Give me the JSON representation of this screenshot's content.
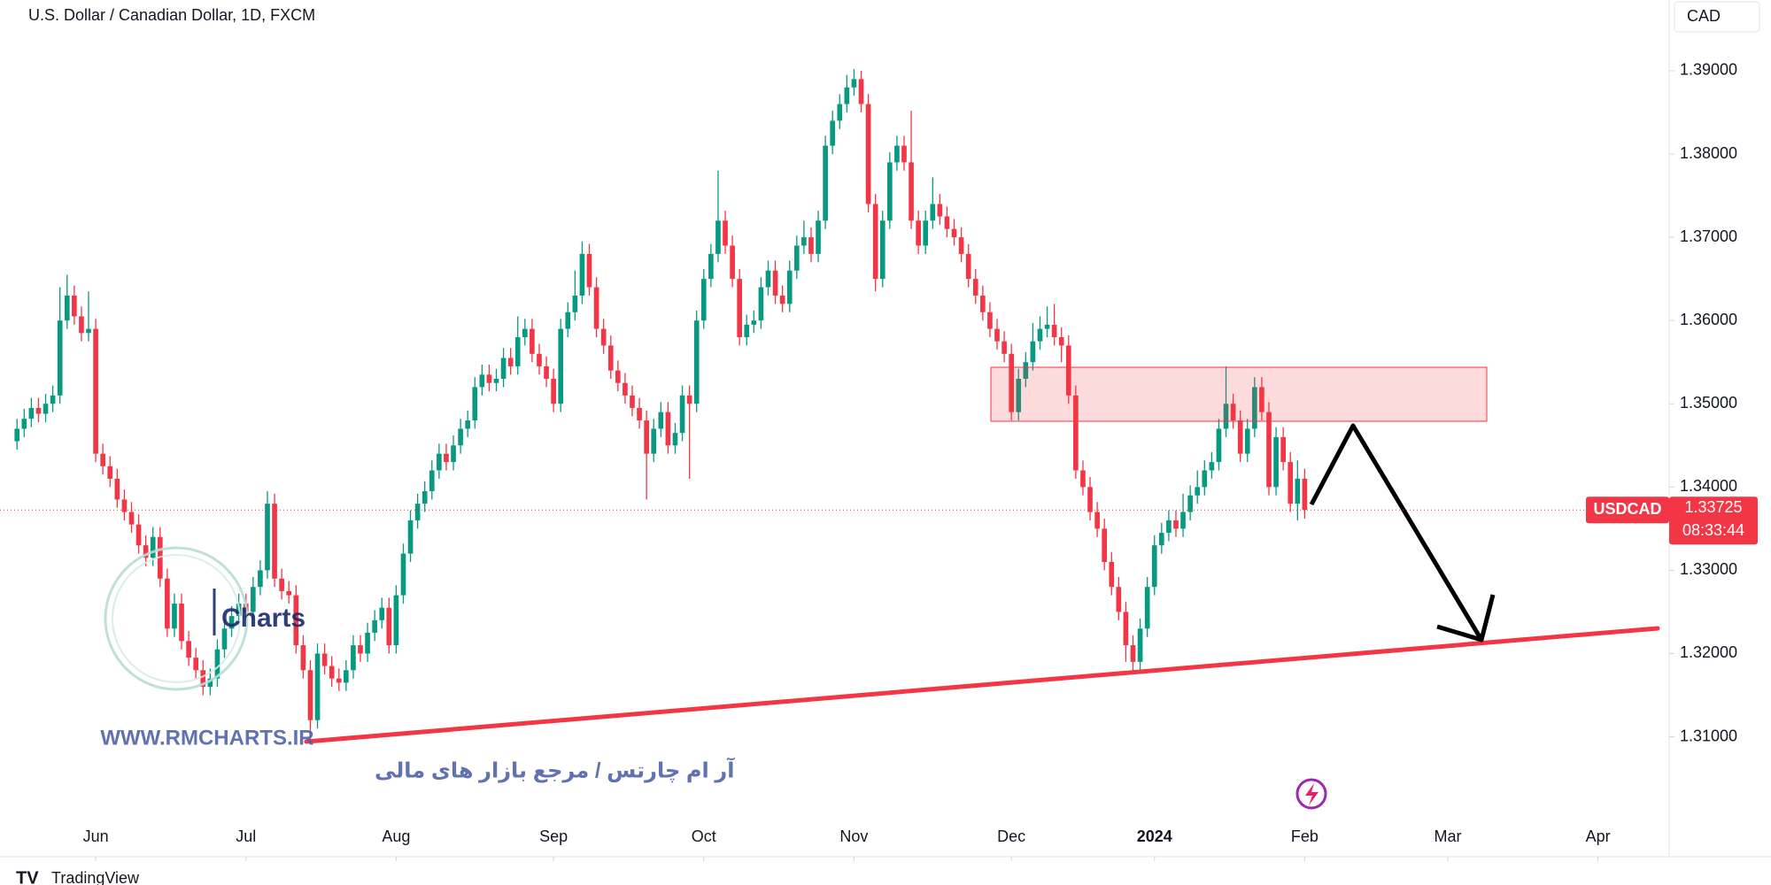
{
  "chart_data": {
    "type": "candlestick",
    "title": "U.S. Dollar / Canadian Dollar, 1D, FXCM",
    "currency": "CAD",
    "symbol": "USDCAD",
    "last_price": 1.33725,
    "countdown": "08:33:44",
    "up_color": "#089981",
    "down_color": "#f23645",
    "xlim": [
      -2.38,
      230.95
    ],
    "xticks": [
      {
        "value": 11,
        "label": "Jun"
      },
      {
        "value": 32,
        "label": "Jul"
      },
      {
        "value": 53,
        "label": "Aug"
      },
      {
        "value": 75,
        "label": "Sep"
      },
      {
        "value": 96,
        "label": "Oct"
      },
      {
        "value": 117,
        "label": "Nov"
      },
      {
        "value": 139,
        "label": "Dec"
      },
      {
        "value": 159,
        "label": "2024"
      },
      {
        "value": 180,
        "label": "Feb"
      },
      {
        "value": 200,
        "label": "Mar"
      },
      {
        "value": 221,
        "label": "Apr"
      }
    ],
    "ylim": [
      1.2956,
      1.3985
    ],
    "yticks": [
      {
        "value": 1.31,
        "label": "1.31000"
      },
      {
        "value": 1.32,
        "label": "1.32000"
      },
      {
        "value": 1.33,
        "label": "1.33000"
      },
      {
        "value": 1.34,
        "label": "1.34000"
      },
      {
        "value": 1.35,
        "label": "1.35000"
      },
      {
        "value": 1.36,
        "label": "1.36000"
      },
      {
        "value": 1.37,
        "label": "1.37000"
      },
      {
        "value": 1.38,
        "label": "1.38000"
      },
      {
        "value": 1.39,
        "label": "1.39000"
      }
    ],
    "open": [
      1.3455,
      1.347,
      1.3482,
      1.3495,
      1.3488,
      1.35,
      1.351,
      1.36,
      1.363,
      1.3605,
      1.3585,
      1.359,
      1.344,
      1.3425,
      1.341,
      1.3385,
      1.337,
      1.3355,
      1.333,
      1.3315,
      1.334,
      1.329,
      1.323,
      1.326,
      1.3215,
      1.3195,
      1.318,
      1.316,
      1.317,
      1.3205,
      1.323,
      1.3245,
      1.326,
      1.325,
      1.328,
      1.33,
      1.338,
      1.329,
      1.3275,
      1.327,
      1.321,
      1.318,
      1.312,
      1.32,
      1.3185,
      1.317,
      1.3165,
      1.318,
      1.321,
      1.32,
      1.3225,
      1.324,
      1.3255,
      1.321,
      1.327,
      1.332,
      1.336,
      1.338,
      1.3395,
      1.342,
      1.344,
      1.343,
      1.345,
      1.347,
      1.348,
      1.352,
      1.3535,
      1.3525,
      1.353,
      1.3555,
      1.3545,
      1.358,
      1.359,
      1.356,
      1.3545,
      1.353,
      1.35,
      1.359,
      1.361,
      1.363,
      1.368,
      1.364,
      1.359,
      1.357,
      1.354,
      1.3525,
      1.351,
      1.3495,
      1.348,
      1.344,
      1.347,
      1.349,
      1.345,
      1.3465,
      1.351,
      1.35,
      1.36,
      1.365,
      1.368,
      1.372,
      1.369,
      1.365,
      1.358,
      1.3595,
      1.36,
      1.364,
      1.366,
      1.363,
      1.362,
      1.366,
      1.369,
      1.37,
      1.368,
      1.372,
      1.381,
      1.384,
      1.386,
      1.388,
      1.389,
      1.386,
      1.374,
      1.365,
      1.372,
      1.379,
      1.381,
      1.379,
      1.372,
      1.369,
      1.372,
      1.374,
      1.3725,
      1.371,
      1.37,
      1.368,
      1.365,
      1.363,
      1.361,
      1.359,
      1.3575,
      1.356,
      1.349,
      1.353,
      1.355,
      1.3575,
      1.359,
      1.3595,
      1.358,
      1.357,
      1.351,
      1.342,
      1.34,
      1.337,
      1.335,
      1.331,
      1.328,
      1.325,
      1.321,
      1.319,
      1.323,
      1.328,
      1.333,
      1.3345,
      1.336,
      1.335,
      1.337,
      1.339,
      1.34,
      1.342,
      1.343,
      1.347,
      1.35,
      1.348,
      1.344,
      1.347,
      1.352,
      1.349,
      1.34,
      1.346,
      1.343,
      1.338,
      1.341
    ],
    "high": [
      1.3482,
      1.3494,
      1.3507,
      1.3507,
      1.3512,
      1.3522,
      1.364,
      1.3655,
      1.3642,
      1.3617,
      1.3635,
      1.3602,
      1.3452,
      1.3437,
      1.3422,
      1.3397,
      1.3382,
      1.3367,
      1.3342,
      1.3352,
      1.3352,
      1.3302,
      1.3272,
      1.3272,
      1.3227,
      1.3207,
      1.3192,
      1.3182,
      1.3217,
      1.3242,
      1.3257,
      1.3272,
      1.3272,
      1.3292,
      1.3312,
      1.3395,
      1.3392,
      1.3302,
      1.3287,
      1.3282,
      1.3222,
      1.3192,
      1.3212,
      1.3212,
      1.3197,
      1.3182,
      1.3192,
      1.3222,
      1.3222,
      1.3237,
      1.3252,
      1.3267,
      1.3267,
      1.3282,
      1.3332,
      1.3372,
      1.3392,
      1.3407,
      1.3432,
      1.3452,
      1.3452,
      1.3462,
      1.3482,
      1.3492,
      1.3532,
      1.3547,
      1.3547,
      1.3542,
      1.3567,
      1.3567,
      1.3605,
      1.3602,
      1.3602,
      1.3572,
      1.3557,
      1.3542,
      1.3602,
      1.3622,
      1.366,
      1.3695,
      1.3692,
      1.3652,
      1.3602,
      1.3582,
      1.3552,
      1.3537,
      1.3522,
      1.3507,
      1.3492,
      1.3482,
      1.3502,
      1.3502,
      1.3477,
      1.3522,
      1.3522,
      1.3612,
      1.3662,
      1.3692,
      1.378,
      1.3732,
      1.3702,
      1.3662,
      1.3607,
      1.3612,
      1.3652,
      1.3672,
      1.3672,
      1.3642,
      1.3672,
      1.3702,
      1.372,
      1.3712,
      1.3732,
      1.3822,
      1.3852,
      1.3872,
      1.3895,
      1.3902,
      1.39,
      1.3872,
      1.3752,
      1.3732,
      1.3802,
      1.3822,
      1.3822,
      1.3852,
      1.3732,
      1.3732,
      1.3772,
      1.3752,
      1.3737,
      1.3722,
      1.3712,
      1.3692,
      1.3662,
      1.3642,
      1.3622,
      1.3602,
      1.3587,
      1.3572,
      1.3542,
      1.3562,
      1.3597,
      1.3605,
      1.3617,
      1.362,
      1.3592,
      1.3582,
      1.3522,
      1.3432,
      1.3412,
      1.3382,
      1.3362,
      1.3322,
      1.3292,
      1.3262,
      1.3222,
      1.3242,
      1.3292,
      1.3342,
      1.3357,
      1.3372,
      1.3372,
      1.3392,
      1.3402,
      1.342,
      1.3432,
      1.3442,
      1.3482,
      1.3545,
      1.3512,
      1.3492,
      1.3482,
      1.3532,
      1.3532,
      1.3502,
      1.3472,
      1.3472,
      1.3442,
      1.3432,
      1.3422
    ],
    "low": [
      1.3445,
      1.346,
      1.3472,
      1.3478,
      1.3478,
      1.349,
      1.35,
      1.359,
      1.3595,
      1.3575,
      1.3575,
      1.343,
      1.3415,
      1.34,
      1.3375,
      1.336,
      1.3345,
      1.332,
      1.3305,
      1.3305,
      1.328,
      1.322,
      1.322,
      1.3205,
      1.3185,
      1.317,
      1.315,
      1.315,
      1.316,
      1.3195,
      1.322,
      1.3235,
      1.324,
      1.324,
      1.327,
      1.329,
      1.328,
      1.3265,
      1.326,
      1.32,
      1.317,
      1.3095,
      1.311,
      1.3175,
      1.316,
      1.3155,
      1.3155,
      1.317,
      1.319,
      1.319,
      1.3215,
      1.323,
      1.32,
      1.32,
      1.326,
      1.331,
      1.335,
      1.337,
      1.3385,
      1.341,
      1.342,
      1.342,
      1.344,
      1.346,
      1.347,
      1.351,
      1.3515,
      1.3515,
      1.352,
      1.3535,
      1.3535,
      1.357,
      1.355,
      1.3535,
      1.352,
      1.349,
      1.349,
      1.358,
      1.36,
      1.362,
      1.363,
      1.358,
      1.356,
      1.353,
      1.3515,
      1.35,
      1.3485,
      1.347,
      1.3385,
      1.343,
      1.346,
      1.344,
      1.344,
      1.3455,
      1.341,
      1.349,
      1.359,
      1.364,
      1.367,
      1.368,
      1.364,
      1.357,
      1.357,
      1.3585,
      1.359,
      1.363,
      1.362,
      1.361,
      1.361,
      1.365,
      1.368,
      1.367,
      1.367,
      1.371,
      1.38,
      1.383,
      1.385,
      1.387,
      1.385,
      1.373,
      1.3635,
      1.364,
      1.371,
      1.378,
      1.378,
      1.371,
      1.368,
      1.368,
      1.371,
      1.3715,
      1.37,
      1.369,
      1.367,
      1.364,
      1.362,
      1.36,
      1.358,
      1.3565,
      1.355,
      1.348,
      1.348,
      1.352,
      1.354,
      1.3565,
      1.358,
      1.357,
      1.355,
      1.35,
      1.341,
      1.339,
      1.336,
      1.334,
      1.33,
      1.327,
      1.324,
      1.319,
      1.3175,
      1.318,
      1.322,
      1.327,
      1.332,
      1.3335,
      1.334,
      1.334,
      1.336,
      1.338,
      1.339,
      1.341,
      1.342,
      1.346,
      1.347,
      1.343,
      1.343,
      1.346,
      1.348,
      1.339,
      1.339,
      1.342,
      1.337,
      1.336,
      1.3362
    ],
    "close": [
      1.347,
      1.3482,
      1.3495,
      1.3488,
      1.35,
      1.351,
      1.36,
      1.363,
      1.3605,
      1.3585,
      1.359,
      1.344,
      1.3425,
      1.341,
      1.3385,
      1.337,
      1.3355,
      1.333,
      1.3315,
      1.334,
      1.329,
      1.323,
      1.326,
      1.3215,
      1.3195,
      1.318,
      1.316,
      1.317,
      1.3205,
      1.323,
      1.3245,
      1.326,
      1.325,
      1.328,
      1.33,
      1.338,
      1.329,
      1.3275,
      1.327,
      1.321,
      1.318,
      1.312,
      1.32,
      1.3185,
      1.317,
      1.3165,
      1.318,
      1.321,
      1.32,
      1.3225,
      1.324,
      1.3255,
      1.321,
      1.327,
      1.332,
      1.336,
      1.338,
      1.3395,
      1.342,
      1.344,
      1.343,
      1.345,
      1.347,
      1.348,
      1.352,
      1.3535,
      1.3525,
      1.353,
      1.3555,
      1.3545,
      1.358,
      1.359,
      1.356,
      1.3545,
      1.353,
      1.35,
      1.359,
      1.361,
      1.363,
      1.368,
      1.364,
      1.359,
      1.357,
      1.354,
      1.3525,
      1.351,
      1.3495,
      1.348,
      1.344,
      1.347,
      1.349,
      1.345,
      1.3465,
      1.351,
      1.35,
      1.36,
      1.365,
      1.368,
      1.372,
      1.369,
      1.365,
      1.358,
      1.3595,
      1.36,
      1.364,
      1.366,
      1.363,
      1.362,
      1.366,
      1.369,
      1.37,
      1.368,
      1.372,
      1.381,
      1.384,
      1.386,
      1.388,
      1.389,
      1.386,
      1.374,
      1.365,
      1.372,
      1.379,
      1.381,
      1.379,
      1.372,
      1.369,
      1.372,
      1.374,
      1.3725,
      1.371,
      1.37,
      1.368,
      1.365,
      1.363,
      1.361,
      1.359,
      1.3575,
      1.356,
      1.349,
      1.353,
      1.355,
      1.3575,
      1.359,
      1.3595,
      1.358,
      1.357,
      1.351,
      1.342,
      1.34,
      1.337,
      1.335,
      1.331,
      1.328,
      1.325,
      1.321,
      1.319,
      1.323,
      1.328,
      1.333,
      1.3345,
      1.336,
      1.335,
      1.337,
      1.339,
      1.34,
      1.342,
      1.343,
      1.347,
      1.35,
      1.348,
      1.344,
      1.347,
      1.352,
      1.349,
      1.34,
      1.346,
      1.343,
      1.338,
      1.341,
      1.33725
    ]
  },
  "branding": {
    "logo": "Charts",
    "url": "WWW.RMCHARTS.IR",
    "tagline": "آر ام چارتس / مرجع بازار های مالی",
    "platform": "TradingView"
  }
}
